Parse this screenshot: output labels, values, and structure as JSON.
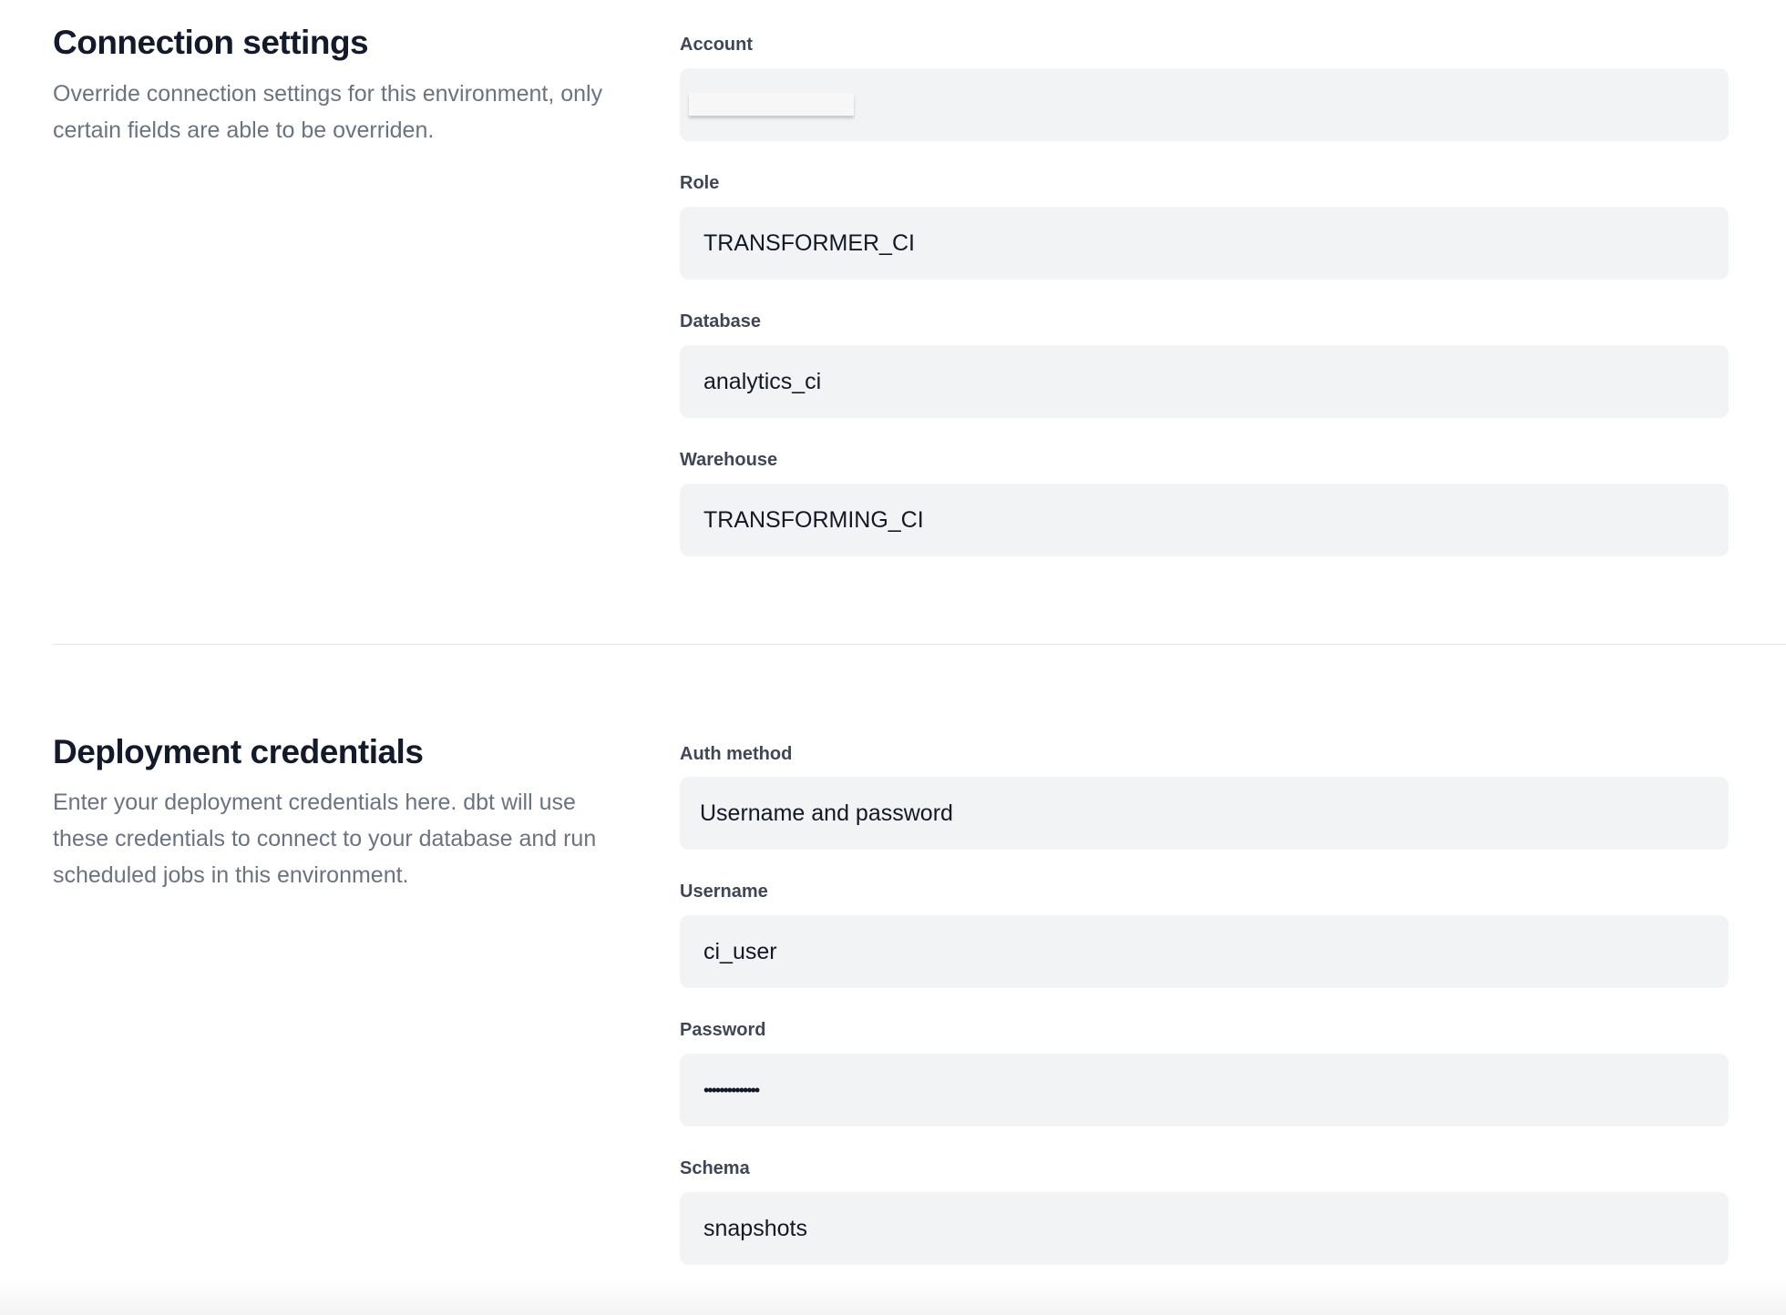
{
  "connection_settings": {
    "title": "Connection settings",
    "description": "Override connection settings for this environment, only certain fields are able to be overriden.",
    "fields": [
      {
        "label": "Account",
        "value": ""
      },
      {
        "label": "Role",
        "value": "TRANSFORMER_CI"
      },
      {
        "label": "Database",
        "value": "analytics_ci"
      },
      {
        "label": "Warehouse",
        "value": "TRANSFORMING_CI"
      }
    ]
  },
  "deployment_credentials": {
    "title": "Deployment credentials",
    "description": "Enter your deployment credentials here. dbt will use these credentials to connect to your database and run scheduled jobs in this environment.",
    "fields": [
      {
        "label": "Auth method",
        "value": "Username and password"
      },
      {
        "label": "Username",
        "value": "ci_user"
      },
      {
        "label": "Password",
        "value": "••••••••••••••"
      },
      {
        "label": "Schema",
        "value": "snapshots"
      }
    ]
  }
}
